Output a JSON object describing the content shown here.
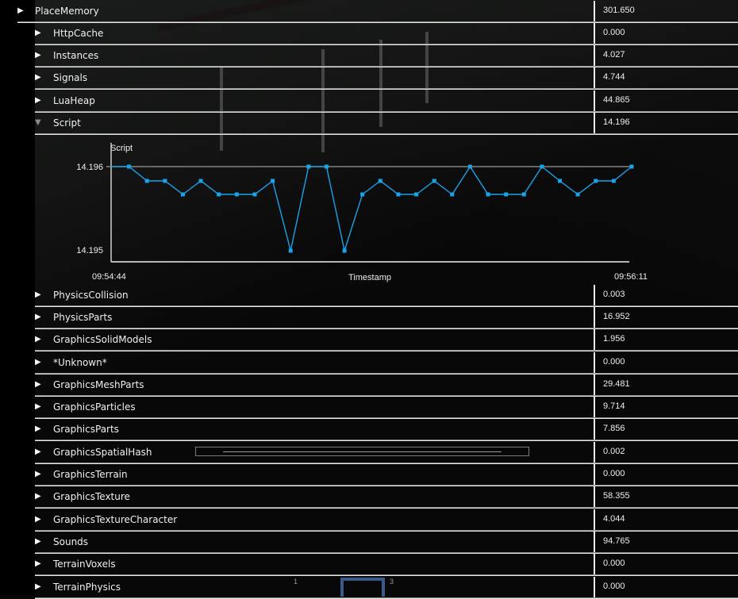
{
  "root": {
    "label": "PlaceMemory",
    "value": "301.650",
    "expanded": true
  },
  "rows": [
    {
      "label": "HttpCache",
      "value": "0.000",
      "expanded": false
    },
    {
      "label": "Instances",
      "value": "4.027",
      "expanded": false
    },
    {
      "label": "Signals",
      "value": "4.744",
      "expanded": false
    },
    {
      "label": "LuaHeap",
      "value": "44.865",
      "expanded": false
    },
    {
      "label": "Script",
      "value": "14.196",
      "expanded": true
    },
    {
      "label": "PhysicsCollision",
      "value": "0.003",
      "expanded": false
    },
    {
      "label": "PhysicsParts",
      "value": "16.952",
      "expanded": false
    },
    {
      "label": "GraphicsSolidModels",
      "value": "1.956",
      "expanded": false
    },
    {
      "label": "*Unknown*",
      "value": "0.000",
      "expanded": false
    },
    {
      "label": "GraphicsMeshParts",
      "value": "29.481",
      "expanded": false
    },
    {
      "label": "GraphicsParticles",
      "value": "9.714",
      "expanded": false
    },
    {
      "label": "GraphicsParts",
      "value": "7.856",
      "expanded": false
    },
    {
      "label": "GraphicsSpatialHash",
      "value": "0.002",
      "expanded": false
    },
    {
      "label": "GraphicsTerrain",
      "value": "0.000",
      "expanded": false
    },
    {
      "label": "GraphicsTexture",
      "value": "58.355",
      "expanded": false
    },
    {
      "label": "GraphicsTextureCharacter",
      "value": "4.044",
      "expanded": false
    },
    {
      "label": "Sounds",
      "value": "94.765",
      "expanded": false
    },
    {
      "label": "TerrainVoxels",
      "value": "0.000",
      "expanded": false
    },
    {
      "label": "TerrainPhysics",
      "value": "0.000",
      "expanded": false
    }
  ],
  "icons": {
    "collapsed": "▶",
    "expanded": "▼"
  },
  "colors": {
    "series": "#1aa3e8",
    "text": "#f0f0f0",
    "separator": "#e8e8e8",
    "background": "#070707",
    "hotbar_selected": "#3b5a8c"
  },
  "hotbar": {
    "slot_1": "1",
    "slot_3": "3"
  },
  "chart_data": {
    "type": "line",
    "title": "Script",
    "xlabel": "Timestamp",
    "ylabel": "",
    "x_tick_labels": [
      "09:54:44",
      "09:56:11"
    ],
    "y_tick_labels": [
      "14.196",
      "14.195"
    ],
    "ylim": [
      14.195,
      14.196
    ],
    "grid": false,
    "legend": "none",
    "series": [
      {
        "name": "Script",
        "color": "#1aa3e8",
        "values": [
          14.196,
          14.196,
          14.19583,
          14.19583,
          14.19567,
          14.19583,
          14.19567,
          14.19567,
          14.19567,
          14.19583,
          14.195,
          14.196,
          14.196,
          14.195,
          14.19567,
          14.19583,
          14.19567,
          14.19567,
          14.19583,
          14.19567,
          14.196,
          14.19567,
          14.19567,
          14.19567,
          14.196,
          14.19583,
          14.19567,
          14.19583,
          14.19583,
          14.196
        ]
      }
    ]
  }
}
